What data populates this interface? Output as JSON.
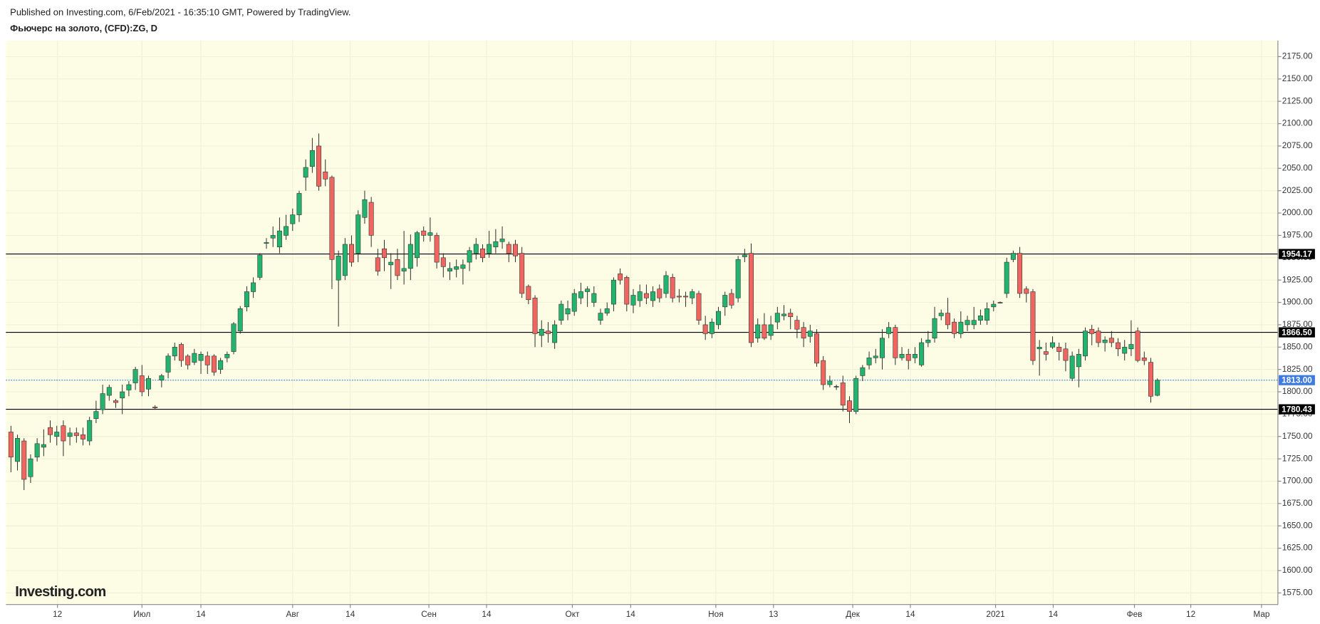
{
  "chart_data": {
    "type": "candlestick",
    "title": "Фьючерс на золото, (CFD):ZG, D",
    "subtitle": "Published on Investing.com, 6/Feb/2021 - 16:35:10 GMT, Powered by TradingView.",
    "logo": "Investing.com",
    "up_color": "#22b46e",
    "down_color": "#ef6660",
    "background": "#fdfde6",
    "grid": true,
    "open": [
      1755,
      1722,
      1745,
      1705,
      1727,
      1738,
      1760,
      1750,
      1762,
      1750,
      1754,
      1752,
      1745,
      1770,
      1780,
      1796,
      1790,
      1793,
      1802,
      1810,
      1818,
      1803,
      1783,
      1813,
      1822,
      1840,
      1853,
      1840,
      1833,
      1835,
      1840,
      1840,
      1825,
      1838,
      1845,
      1868,
      1895,
      1912,
      1928,
      1966,
      1972,
      1962,
      1975,
      1988,
      1998,
      2040,
      2052,
      2075,
      2046,
      2040,
      1925,
      1930,
      1965,
      1955,
      1995,
      2012,
      1950,
      1960,
      1942,
      1948,
      1935,
      1938,
      1950,
      1980,
      1975,
      1975,
      1950,
      1935,
      1937,
      1938,
      1945,
      1955,
      1960,
      1955,
      1962,
      1968,
      1965,
      1965,
      1955,
      1918,
      1905,
      1863,
      1868,
      1855,
      1880,
      1887,
      1890,
      1905,
      1912,
      1900,
      1880,
      1888,
      1898,
      1932,
      1928,
      1897,
      1902,
      1910,
      1902,
      1915,
      1910,
      1928,
      1907,
      1907,
      1905,
      1910,
      1875,
      1865,
      1875,
      1895,
      1910,
      1905,
      1951,
      1955,
      1860,
      1875,
      1863,
      1878,
      1885,
      1888,
      1880,
      1872,
      1862,
      1865,
      1835,
      1808,
      1806,
      1810,
      1790,
      1778,
      1818,
      1830,
      1838,
      1838,
      1865,
      1872,
      1838,
      1842,
      1838,
      1830,
      1855,
      1860,
      1885,
      1888,
      1878,
      1865,
      1875,
      1875,
      1880,
      1880,
      1895,
      1900,
      1910,
      1948,
      1955,
      1915,
      1912,
      1848,
      1845,
      1850,
      1850,
      1848,
      1815,
      1828,
      1840,
      1870,
      1868,
      1855,
      1860,
      1855,
      1843,
      1848,
      1868,
      1838,
      1833,
      1796
    ],
    "high": [
      1762,
      1752,
      1748,
      1730,
      1748,
      1758,
      1768,
      1762,
      1768,
      1760,
      1760,
      1760,
      1772,
      1790,
      1808,
      1808,
      1792,
      1808,
      1812,
      1828,
      1830,
      1818,
      1785,
      1820,
      1843,
      1855,
      1855,
      1842,
      1848,
      1845,
      1845,
      1842,
      1838,
      1845,
      1878,
      1896,
      1918,
      1928,
      1955,
      1972,
      1985,
      1995,
      1998,
      2005,
      2025,
      2060,
      2084,
      2089,
      2060,
      2042,
      1958,
      1972,
      1975,
      2003,
      2025,
      2018,
      1960,
      1970,
      1955,
      1960,
      1980,
      1976,
      1980,
      1985,
      1995,
      1978,
      1955,
      1945,
      1948,
      1948,
      1962,
      1972,
      1965,
      1980,
      1982,
      1985,
      1968,
      1970,
      1962,
      1920,
      1908,
      1880,
      1878,
      1880,
      1902,
      1902,
      1915,
      1922,
      1918,
      1918,
      1893,
      1900,
      1928,
      1938,
      1930,
      1915,
      1920,
      1920,
      1918,
      1920,
      1935,
      1932,
      1915,
      1912,
      1915,
      1913,
      1885,
      1882,
      1895,
      1912,
      1915,
      1952,
      1960,
      1966,
      1882,
      1888,
      1885,
      1895,
      1897,
      1893,
      1885,
      1878,
      1875,
      1870,
      1840,
      1818,
      1808,
      1818,
      1795,
      1818,
      1830,
      1845,
      1848,
      1870,
      1878,
      1875,
      1850,
      1848,
      1850,
      1860,
      1868,
      1895,
      1892,
      1905,
      1882,
      1890,
      1885,
      1895,
      1892,
      1900,
      1902,
      1901,
      1950,
      1958,
      1962,
      1918,
      1915,
      1858,
      1855,
      1862,
      1855,
      1855,
      1845,
      1848,
      1872,
      1875,
      1872,
      1862,
      1868,
      1860,
      1858,
      1880,
      1872,
      1845,
      1838,
      1815
    ],
    "low": [
      1710,
      1712,
      1690,
      1698,
      1722,
      1728,
      1743,
      1740,
      1728,
      1740,
      1743,
      1740,
      1740,
      1765,
      1775,
      1790,
      1782,
      1775,
      1795,
      1802,
      1795,
      1795,
      1780,
      1805,
      1815,
      1835,
      1828,
      1825,
      1830,
      1820,
      1820,
      1818,
      1820,
      1833,
      1842,
      1865,
      1890,
      1905,
      1925,
      1960,
      1962,
      1955,
      1970,
      1980,
      1990,
      2025,
      2045,
      2025,
      2030,
      1915,
      1873,
      1925,
      1940,
      1945,
      1988,
      1962,
      1930,
      1935,
      1915,
      1925,
      1920,
      1925,
      1940,
      1968,
      1968,
      1938,
      1928,
      1925,
      1928,
      1920,
      1935,
      1948,
      1945,
      1950,
      1955,
      1960,
      1945,
      1945,
      1905,
      1898,
      1850,
      1850,
      1855,
      1848,
      1875,
      1880,
      1885,
      1898,
      1895,
      1895,
      1875,
      1885,
      1890,
      1920,
      1890,
      1888,
      1895,
      1898,
      1895,
      1900,
      1905,
      1900,
      1900,
      1895,
      1898,
      1875,
      1858,
      1860,
      1870,
      1885,
      1893,
      1900,
      1945,
      1850,
      1855,
      1858,
      1858,
      1870,
      1880,
      1870,
      1860,
      1850,
      1855,
      1828,
      1802,
      1805,
      1802,
      1778,
      1765,
      1775,
      1812,
      1825,
      1832,
      1825,
      1860,
      1830,
      1835,
      1825,
      1832,
      1828,
      1850,
      1855,
      1880,
      1870,
      1860,
      1860,
      1868,
      1870,
      1875,
      1875,
      1890,
      1899,
      1905,
      1945,
      1905,
      1900,
      1830,
      1818,
      1835,
      1848,
      1835,
      1823,
      1812,
      1805,
      1835,
      1852,
      1850,
      1845,
      1850,
      1840,
      1835,
      1840,
      1833,
      1830,
      1788,
      1795
    ],
    "close": [
      1727,
      1748,
      1702,
      1725,
      1742,
      1741,
      1752,
      1755,
      1745,
      1754,
      1751,
      1747,
      1768,
      1778,
      1798,
      1805,
      1788,
      1800,
      1808,
      1825,
      1800,
      1815,
      1782,
      1818,
      1840,
      1850,
      1835,
      1830,
      1843,
      1842,
      1830,
      1822,
      1835,
      1842,
      1876,
      1893,
      1912,
      1922,
      1953,
      1967,
      1975,
      1980,
      1985,
      1998,
      2022,
      2051,
      2070,
      2030,
      2038,
      1948,
      1952,
      1965,
      1945,
      1998,
      2015,
      1975,
      1935,
      1950,
      1945,
      1930,
      1938,
      1965,
      1978,
      1975,
      1978,
      1945,
      1940,
      1938,
      1940,
      1942,
      1958,
      1965,
      1950,
      1965,
      1968,
      1971,
      1955,
      1952,
      1910,
      1903,
      1865,
      1870,
      1865,
      1875,
      1898,
      1893,
      1910,
      1912,
      1915,
      1910,
      1888,
      1893,
      1925,
      1925,
      1898,
      1908,
      1912,
      1905,
      1912,
      1905,
      1930,
      1905,
      1906,
      1906,
      1912,
      1880,
      1865,
      1878,
      1890,
      1908,
      1897,
      1948,
      1953,
      1855,
      1875,
      1860,
      1875,
      1888,
      1887,
      1884,
      1870,
      1860,
      1868,
      1832,
      1808,
      1812,
      1806,
      1785,
      1778,
      1815,
      1827,
      1838,
      1840,
      1860,
      1872,
      1838,
      1842,
      1835,
      1842,
      1855,
      1858,
      1882,
      1888,
      1875,
      1865,
      1878,
      1880,
      1880,
      1885,
      1893,
      1898,
      1900,
      1945,
      1955,
      1910,
      1910,
      1835,
      1850,
      1842,
      1855,
      1845,
      1835,
      1840,
      1842,
      1868,
      1865,
      1855,
      1858,
      1855,
      1848,
      1850,
      1853,
      1835,
      1835,
      1795,
      1813
    ],
    "xlim": [
      -0.77,
      193.4
    ],
    "xticks": [
      {
        "value": 7.1,
        "label": "12"
      },
      {
        "value": 20,
        "label": "Июл"
      },
      {
        "value": 29,
        "label": "14"
      },
      {
        "value": 43,
        "label": "Авг"
      },
      {
        "value": 51.8,
        "label": "14"
      },
      {
        "value": 63.8,
        "label": "Сен"
      },
      {
        "value": 72.6,
        "label": "14"
      },
      {
        "value": 85.7,
        "label": "Окт"
      },
      {
        "value": 94.6,
        "label": "14"
      },
      {
        "value": 107.6,
        "label": "Ноя"
      },
      {
        "value": 116.4,
        "label": "13"
      },
      {
        "value": 128.5,
        "label": "Дек"
      },
      {
        "value": 137.3,
        "label": "14"
      },
      {
        "value": 150.3,
        "label": "2021"
      },
      {
        "value": 159.1,
        "label": "14"
      },
      {
        "value": 171.5,
        "label": "Фев"
      },
      {
        "value": 180.1,
        "label": "12"
      },
      {
        "value": 190.9,
        "label": "Мар"
      }
    ],
    "ylim": [
      1562,
      2193
    ],
    "yticks": [
      {
        "value": 1575,
        "label": "1575.00"
      },
      {
        "value": 1600,
        "label": "1600.00"
      },
      {
        "value": 1625,
        "label": "1625.00"
      },
      {
        "value": 1650,
        "label": "1650.00"
      },
      {
        "value": 1675,
        "label": "1675.00"
      },
      {
        "value": 1700,
        "label": "1700.00"
      },
      {
        "value": 1725,
        "label": "1725.00"
      },
      {
        "value": 1750,
        "label": "1750.00"
      },
      {
        "value": 1775,
        "label": "1775.00"
      },
      {
        "value": 1800,
        "label": "1800.00"
      },
      {
        "value": 1825,
        "label": "1825.00"
      },
      {
        "value": 1850,
        "label": "1850.00"
      },
      {
        "value": 1875,
        "label": "1875.00"
      },
      {
        "value": 1900,
        "label": "1900.00"
      },
      {
        "value": 1925,
        "label": "1925.00"
      },
      {
        "value": 1950,
        "label": "1950.00"
      },
      {
        "value": 1975,
        "label": "1975.00"
      },
      {
        "value": 2000,
        "label": "2000.00"
      },
      {
        "value": 2025,
        "label": "2025.00"
      },
      {
        "value": 2050,
        "label": "2050.00"
      },
      {
        "value": 2075,
        "label": "2075.00"
      },
      {
        "value": 2100,
        "label": "2100.00"
      },
      {
        "value": 2125,
        "label": "2125.00"
      },
      {
        "value": 2150,
        "label": "2150.00"
      },
      {
        "value": 2175,
        "label": "2175.00"
      }
    ],
    "lines": [
      {
        "value": 1954.17,
        "label": "1954.17",
        "color": "#000000",
        "style": "solid"
      },
      {
        "value": 1866.5,
        "label": "1866.50",
        "color": "#000000",
        "style": "solid"
      },
      {
        "value": 1813,
        "label": "1813.00",
        "color": "#3d7be0",
        "style": "dotted"
      },
      {
        "value": 1780.43,
        "label": "1780.43",
        "color": "#000000",
        "style": "solid"
      }
    ]
  }
}
